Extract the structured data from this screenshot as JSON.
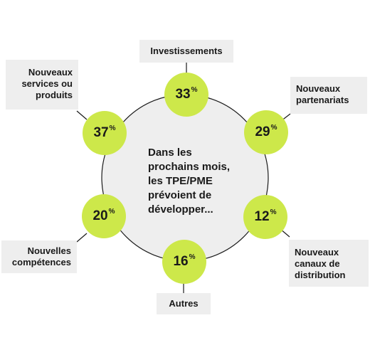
{
  "center_text": "Dans les prochains mois, les TPE/PME prévoient de développer...",
  "items": [
    {
      "label": "Investissements",
      "value": "33",
      "unit": "%"
    },
    {
      "label": "Nouveaux partenariats",
      "value": "29",
      "unit": "%"
    },
    {
      "label": "Nouveaux canaux de distribution",
      "value": "12",
      "unit": "%"
    },
    {
      "label": "Autres",
      "value": "16",
      "unit": "%"
    },
    {
      "label": "Nouvelles compétences",
      "value": "20",
      "unit": "%"
    },
    {
      "label": "Nouveaux services ou produits",
      "value": "37",
      "unit": "%"
    }
  ],
  "colors": {
    "node": "#cde84a",
    "center_fill": "#eeeeee",
    "box_fill": "#eeeeee",
    "line": "#1a1a1a"
  }
}
